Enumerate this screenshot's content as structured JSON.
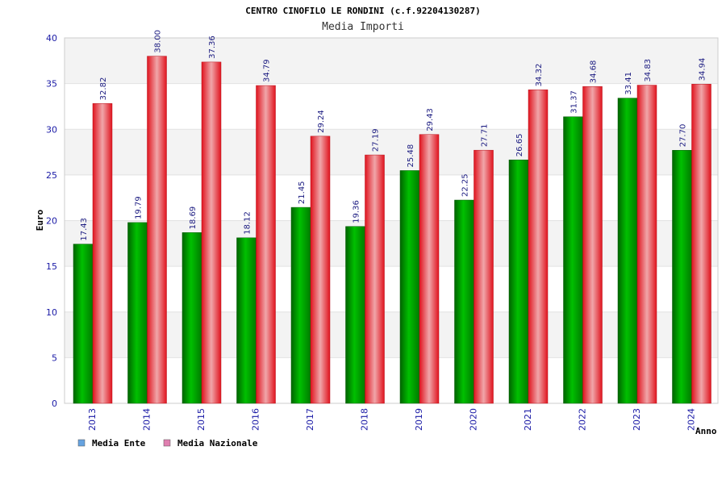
{
  "chart_data": {
    "type": "bar",
    "title": "CENTRO CINOFILO LE RONDINI (c.f.92204130287)",
    "subtitle": "Media Importi",
    "xlabel": "Anno",
    "ylabel": "Euro",
    "ylim": [
      0,
      40
    ],
    "yticks": [
      0,
      5,
      10,
      15,
      20,
      25,
      30,
      35,
      40
    ],
    "grid": true,
    "legend_position": "bottom-left",
    "categories": [
      "2013",
      "2014",
      "2015",
      "2016",
      "2017",
      "2018",
      "2019",
      "2020",
      "2021",
      "2022",
      "2023",
      "2024"
    ],
    "series": [
      {
        "name": "Media Ente",
        "values": [
          17.43,
          19.79,
          18.69,
          18.12,
          21.45,
          19.36,
          25.48,
          22.25,
          26.65,
          31.37,
          33.41,
          27.7
        ],
        "labels": [
          "17.43",
          "19.79",
          "18.69",
          "18.12",
          "21.45",
          "19.36",
          "25.48",
          "22.25",
          "26.65",
          "31.37",
          "33.41",
          "27.70"
        ],
        "color": "#00a000",
        "legend_color": "#66a3e0"
      },
      {
        "name": "Media Nazionale",
        "values": [
          32.82,
          38.0,
          37.36,
          34.79,
          29.24,
          27.19,
          29.43,
          27.71,
          34.32,
          34.68,
          34.83,
          34.94
        ],
        "labels": [
          "32.82",
          "38.00",
          "37.36",
          "34.79",
          "29.24",
          "27.19",
          "29.43",
          "27.71",
          "34.32",
          "34.68",
          "34.83",
          "34.94"
        ],
        "color": "#e8202a",
        "legend_color": "#e07fb0"
      }
    ]
  }
}
